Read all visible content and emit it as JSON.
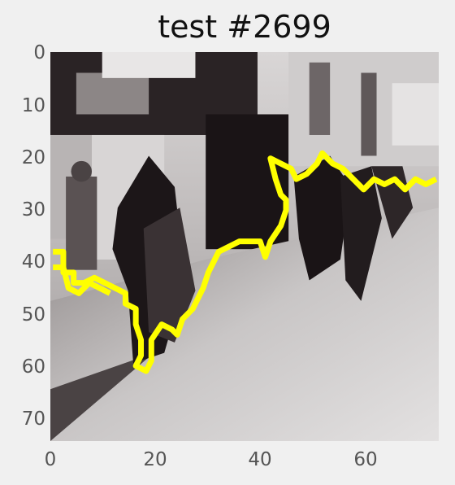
{
  "title": "test #2699",
  "image": {
    "description_icon": "street-scene-photo",
    "overlay_color": "#ffff00",
    "grid_size": 75
  },
  "axes": {
    "x_ticks": [
      "0",
      "20",
      "40",
      "60"
    ],
    "y_ticks": [
      "0",
      "10",
      "20",
      "30",
      "40",
      "50",
      "60",
      "70"
    ],
    "xlim": [
      0,
      74
    ],
    "ylim": [
      74,
      0
    ],
    "grid": false
  },
  "contour": [
    [
      0,
      38
    ],
    [
      2,
      38
    ],
    [
      2,
      42
    ],
    [
      4,
      42
    ],
    [
      4,
      44
    ],
    [
      6,
      44
    ],
    [
      8,
      43
    ],
    [
      10,
      44
    ],
    [
      12,
      45
    ],
    [
      14,
      46
    ],
    [
      14,
      48
    ],
    [
      16,
      49
    ],
    [
      16,
      52
    ],
    [
      17,
      55
    ],
    [
      17,
      58
    ],
    [
      16,
      60
    ],
    [
      18,
      61
    ],
    [
      19,
      59
    ],
    [
      19,
      55
    ],
    [
      21,
      52
    ],
    [
      23,
      53
    ],
    [
      24,
      54
    ],
    [
      25,
      51
    ],
    [
      27,
      49
    ],
    [
      28,
      47
    ],
    [
      29,
      45
    ],
    [
      30,
      42
    ],
    [
      31,
      40
    ],
    [
      32,
      38
    ],
    [
      34,
      37
    ],
    [
      36,
      36
    ],
    [
      38,
      36
    ],
    [
      40,
      36
    ],
    [
      41,
      39
    ],
    [
      42,
      36
    ],
    [
      44,
      33
    ],
    [
      45,
      30
    ],
    [
      45,
      28
    ],
    [
      44,
      27
    ],
    [
      43,
      24
    ],
    [
      42,
      20
    ],
    [
      44,
      21
    ],
    [
      46,
      22
    ],
    [
      47,
      24
    ],
    [
      49,
      23
    ],
    [
      51,
      21
    ],
    [
      52,
      19
    ],
    [
      54,
      21
    ],
    [
      56,
      22
    ],
    [
      58,
      24
    ],
    [
      60,
      26
    ],
    [
      62,
      24
    ],
    [
      64,
      25
    ],
    [
      66,
      24
    ],
    [
      68,
      26
    ],
    [
      70,
      24
    ],
    [
      72,
      25
    ],
    [
      74,
      24
    ]
  ],
  "contour2": [
    [
      0,
      41
    ],
    [
      2,
      41
    ],
    [
      3,
      45
    ],
    [
      5,
      46
    ],
    [
      7,
      44
    ],
    [
      9,
      45
    ],
    [
      11,
      46
    ]
  ]
}
